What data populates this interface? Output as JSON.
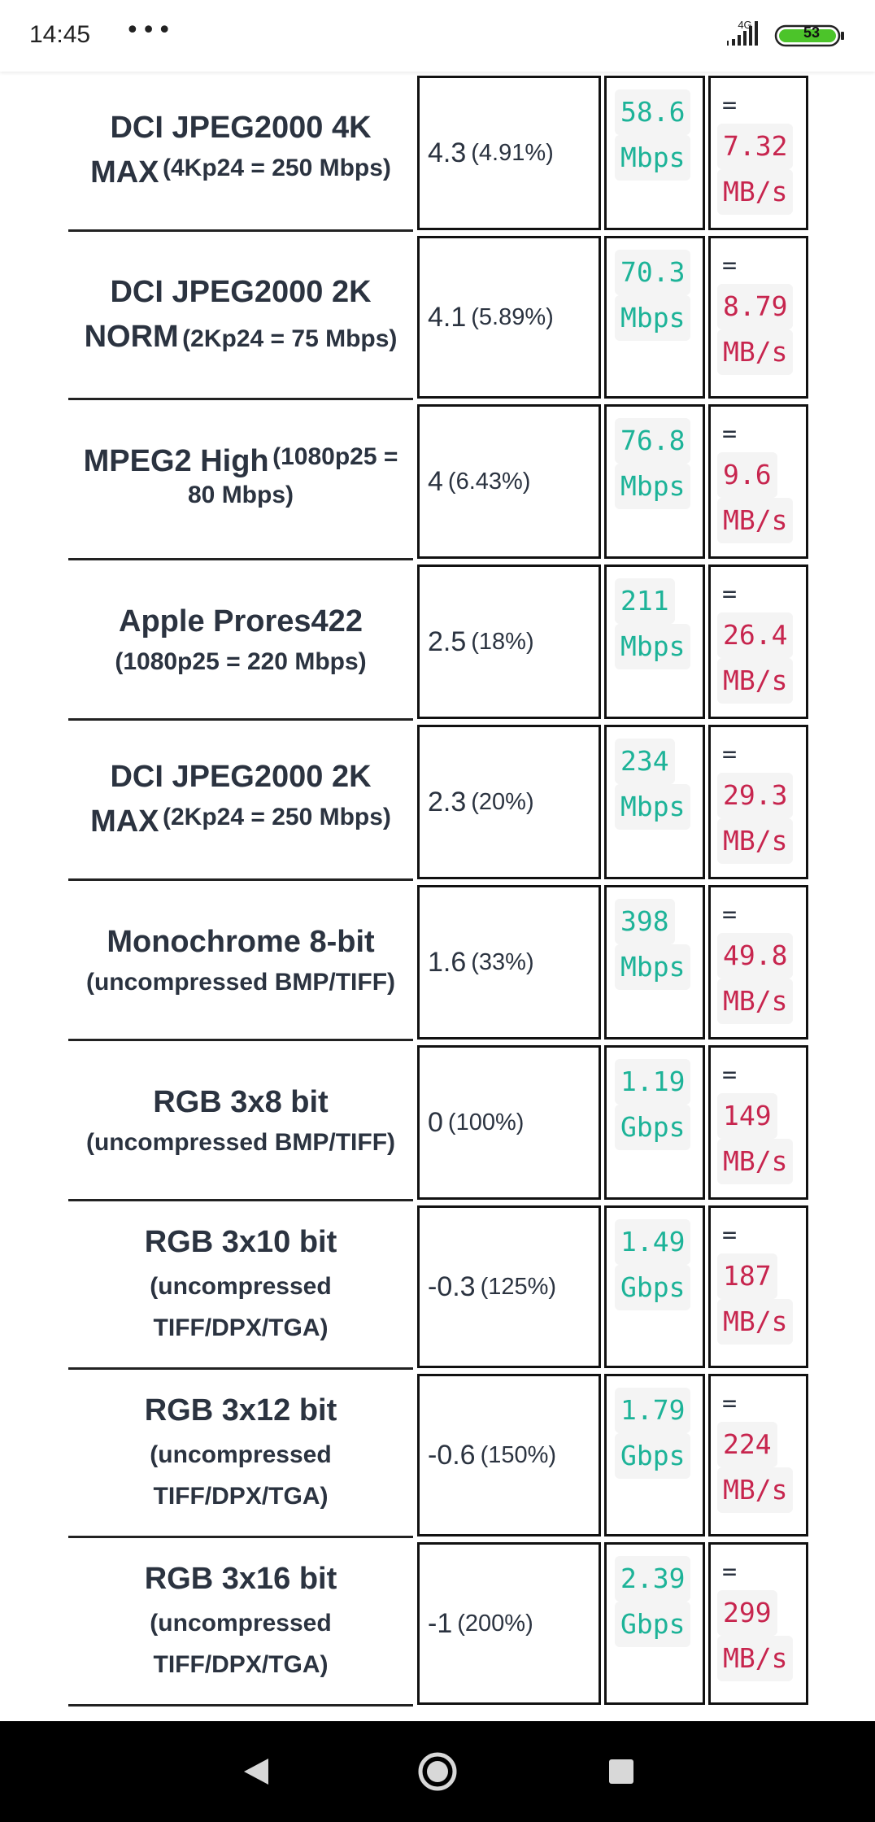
{
  "status_bar": {
    "time": "14:45",
    "dots": "•••",
    "network": "4G",
    "battery": "53"
  },
  "rows": [
    {
      "name": "DCI JPEG2000 4K MAX",
      "detail": "(4Kp24 = 250 Mbps)",
      "ratio": "4.3",
      "pct": "(4.91%)",
      "rate_val": "58.6",
      "rate_unit": "Mbps",
      "eq": "=",
      "mb_val": "7.32",
      "mb_unit": "MB/s"
    },
    {
      "name": "DCI JPEG2000 2K NORM",
      "detail": "(2Kp24 = 75 Mbps)",
      "ratio": "4.1",
      "pct": "(5.89%)",
      "rate_val": "70.3",
      "rate_unit": "Mbps",
      "eq": "=",
      "mb_val": "8.79",
      "mb_unit": "MB/s"
    },
    {
      "name": "MPEG2 High",
      "detail": "(1080p25 = 80 Mbps)",
      "ratio": "4",
      "pct": "(6.43%)",
      "rate_val": "76.8",
      "rate_unit": "Mbps",
      "eq": "=",
      "mb_val": "9.6",
      "mb_unit": "MB/s"
    },
    {
      "name": "Apple Prores422",
      "detail": "(1080p25 = 220 Mbps)",
      "ratio": "2.5",
      "pct": "(18%)",
      "rate_val": "211",
      "rate_unit": "Mbps",
      "eq": "=",
      "mb_val": "26.4",
      "mb_unit": "MB/s"
    },
    {
      "name": "DCI JPEG2000 2K MAX",
      "detail": "(2Kp24 = 250 Mbps)",
      "ratio": "2.3",
      "pct": "(20%)",
      "rate_val": "234",
      "rate_unit": "Mbps",
      "eq": "=",
      "mb_val": "29.3",
      "mb_unit": "MB/s"
    },
    {
      "name": "Monochrome 8-bit",
      "detail": "(uncompressed BMP/TIFF)",
      "ratio": "1.6",
      "pct": "(33%)",
      "rate_val": "398",
      "rate_unit": "Mbps",
      "eq": "=",
      "mb_val": "49.8",
      "mb_unit": "MB/s"
    },
    {
      "name": "RGB 3x8 bit",
      "detail": "(uncompressed BMP/TIFF)",
      "ratio": "0",
      "pct": "(100%)",
      "rate_val": "1.19",
      "rate_unit": "Gbps",
      "eq": "=",
      "mb_val": "149",
      "mb_unit": "MB/s"
    },
    {
      "name": "RGB 3x10 bit",
      "detail": "(uncompressed TIFF/DPX/TGA)",
      "ratio": "-0.3",
      "pct": "(125%)",
      "rate_val": "1.49",
      "rate_unit": "Gbps",
      "eq": "=",
      "mb_val": "187",
      "mb_unit": "MB/s"
    },
    {
      "name": "RGB 3x12 bit",
      "detail": "(uncompressed TIFF/DPX/TGA)",
      "ratio": "-0.6",
      "pct": "(150%)",
      "rate_val": "1.79",
      "rate_unit": "Gbps",
      "eq": "=",
      "mb_val": "224",
      "mb_unit": "MB/s"
    },
    {
      "name": "RGB 3x16 bit",
      "detail": "(uncompressed TIFF/DPX/TGA)",
      "ratio": "-1",
      "pct": "(200%)",
      "rate_val": "2.39",
      "rate_unit": "Gbps",
      "eq": "=",
      "mb_val": "299",
      "mb_unit": "MB/s"
    }
  ],
  "nav": {
    "back": "back-triangle",
    "home": "home-circle",
    "recents": "recents-square"
  },
  "colors": {
    "rate_text": "#1db398",
    "mb_text": "#c7254e",
    "code_bg": "#f4f4f4"
  }
}
